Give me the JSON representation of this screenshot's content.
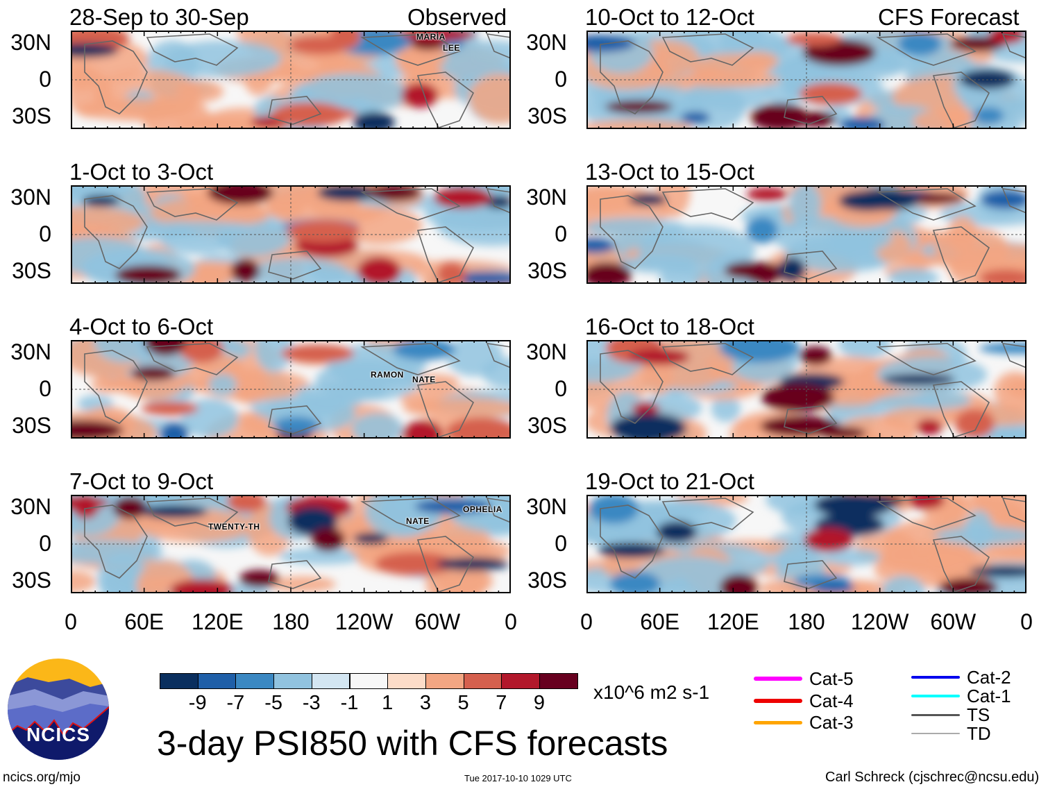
{
  "left_header": {
    "label": "Observed"
  },
  "right_header": {
    "label": "CFS Forecast"
  },
  "panels_observed": [
    {
      "title": "28-Sep to 30-Sep",
      "storms": [
        "MARIA",
        "LEE"
      ]
    },
    {
      "title": "1-Oct to 3-Oct",
      "storms": []
    },
    {
      "title": "4-Oct to 6-Oct",
      "storms": [
        "RAMON",
        "NATE"
      ]
    },
    {
      "title": "7-Oct to 9-Oct",
      "storms": [
        "TWENTY-TH",
        "NATE",
        "OPHELIA"
      ]
    }
  ],
  "panels_forecast": [
    {
      "title": "10-Oct to 12-Oct"
    },
    {
      "title": "13-Oct to 15-Oct"
    },
    {
      "title": "16-Oct to 18-Oct"
    },
    {
      "title": "19-Oct to 21-Oct"
    }
  ],
  "lat_labels": [
    "30N",
    "0",
    "30S"
  ],
  "lon_labels": [
    "0",
    "60E",
    "120E",
    "180",
    "120W",
    "60W",
    "0"
  ],
  "colorbar": {
    "colors": [
      "#0a2f5e",
      "#1f5fa8",
      "#3b88c2",
      "#91c3df",
      "#d3e6f2",
      "#f7f7f7",
      "#fcdcc8",
      "#f3a683",
      "#d5604e",
      "#b2182b",
      "#67001f"
    ],
    "labels": [
      "-9",
      "-7",
      "-5",
      "-3",
      "-1",
      "1",
      "3",
      "5",
      "7",
      "9"
    ],
    "units": "x10^6 m2 s-1"
  },
  "storm_legend": [
    {
      "label": "Cat-5",
      "color": "#ff00ff"
    },
    {
      "label": "Cat-4",
      "color": "#ee0000"
    },
    {
      "label": "Cat-3",
      "color": "#ffa500"
    },
    {
      "label": "Cat-2",
      "color": "#0000ee"
    },
    {
      "label": "Cat-1",
      "color": "#00ffff"
    },
    {
      "label": "TS",
      "color": "#555555"
    },
    {
      "label": "TD",
      "color": "#aaaaaa"
    }
  ],
  "title": "3-day PSI850 with CFS forecasts",
  "logo_text": "NCICS",
  "footer": {
    "url": "ncics.org/mjo",
    "timestamp": "Tue 2017-10-10 1029 UTC",
    "credit": "Carl Schreck (cjschrec@ncsu.edu)"
  }
}
